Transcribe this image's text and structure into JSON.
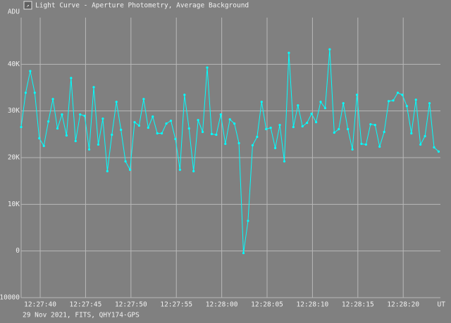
{
  "window_title": "Light Curve - Aperture Photometry, Average Background",
  "chart_data": {
    "type": "line",
    "y_label": "ADU",
    "x_label": "UT",
    "footer": "29 Nov 2021, FITS, QHY174-GPS",
    "color": "#00ffff",
    "grid": true,
    "xlim": [
      44857.9,
      44904.1
    ],
    "ylim": [
      -10000,
      50000
    ],
    "xticks": [
      {
        "value": 44860,
        "label": "12:27:40"
      },
      {
        "value": 44865,
        "label": "12:27:45"
      },
      {
        "value": 44870,
        "label": "12:27:50"
      },
      {
        "value": 44875,
        "label": "12:27:55"
      },
      {
        "value": 44880,
        "label": "12:28:00"
      },
      {
        "value": 44885,
        "label": "12:28:05"
      },
      {
        "value": 44890,
        "label": "12:28:10"
      },
      {
        "value": 44895,
        "label": "12:28:15"
      },
      {
        "value": 44900,
        "label": "12:28:20"
      }
    ],
    "yticks": [
      -10000,
      0,
      {
        "value": 10000,
        "label": "10K"
      },
      {
        "value": 20000,
        "label": "20K"
      },
      {
        "value": 30000,
        "label": "30K"
      },
      {
        "value": 40000,
        "label": "40K"
      }
    ],
    "x": [
      44857.9,
      44858.4,
      44858.9,
      44859.4,
      44859.9,
      44860.4,
      44860.9,
      44861.4,
      44861.9,
      44862.4,
      44862.9,
      44863.4,
      44863.9,
      44864.4,
      44864.9,
      44865.4,
      44865.9,
      44866.4,
      44866.9,
      44867.4,
      44867.9,
      44868.4,
      44868.9,
      44869.4,
      44869.9,
      44870.4,
      44870.9,
      44871.4,
      44871.9,
      44872.4,
      44872.9,
      44873.4,
      44873.9,
      44874.4,
      44874.9,
      44875.4,
      44875.9,
      44876.4,
      44876.9,
      44877.4,
      44877.9,
      44878.4,
      44878.9,
      44879.4,
      44879.9,
      44880.4,
      44880.9,
      44881.4,
      44881.9,
      44882.4,
      44882.9,
      44883.4,
      44883.9,
      44884.4,
      44884.9,
      44885.4,
      44885.9,
      44886.4,
      44886.9,
      44887.4,
      44887.9,
      44888.4,
      44888.9,
      44889.4,
      44889.9,
      44890.4,
      44890.9,
      44891.4,
      44891.9,
      44892.4,
      44892.9,
      44893.4,
      44893.9,
      44894.4,
      44894.9,
      44895.4,
      44895.9,
      44896.4,
      44896.9,
      44897.4,
      44897.9,
      44898.4,
      44898.9,
      44899.4,
      44899.9,
      44900.4,
      44900.9,
      44901.4,
      44901.9,
      44902.4,
      44902.9,
      44903.4,
      44903.9
    ],
    "values": [
      26550,
      33900,
      38550,
      33900,
      24150,
      22500,
      27750,
      32550,
      26250,
      29250,
      24750,
      37050,
      23550,
      29250,
      28950,
      21750,
      35100,
      22800,
      28350,
      17100,
      24900,
      31950,
      25950,
      19200,
      17400,
      27600,
      26850,
      32550,
      26400,
      28800,
      25200,
      25200,
      27300,
      27900,
      24000,
      17400,
      33450,
      26250,
      17100,
      28050,
      25500,
      39300,
      25050,
      24900,
      29250,
      22950,
      28200,
      27300,
      23100,
      -450,
      6450,
      22650,
      24450,
      31950,
      26100,
      26400,
      22050,
      27000,
      19200,
      42450,
      26550,
      31200,
      26700,
      27450,
      29400,
      27600,
      31950,
      30600,
      43200,
      25350,
      26100,
      31650,
      26100,
      21750,
      33450,
      22950,
      22800,
      27150,
      27000,
      22350,
      25500,
      32100,
      32250,
      33900,
      33450,
      31050,
      25200,
      32400,
      22800,
      24600,
      31650,
      22200,
      21300
    ]
  }
}
